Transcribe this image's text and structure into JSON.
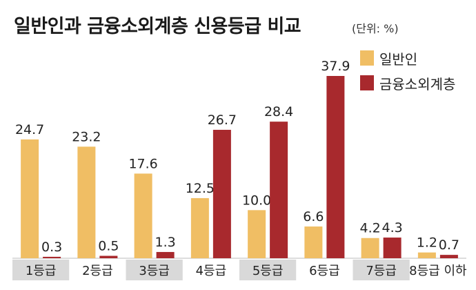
{
  "header": {
    "title": "일반인과 금융소외계층 신용등급 비교",
    "unit": "(단위: %)"
  },
  "colors": {
    "general": "#F0BE64",
    "excluded": "#A8292D",
    "band": "#D9D9D9"
  },
  "chart_data": {
    "type": "bar",
    "title": "일반인과 금융소외계층 신용등급 비교",
    "unit": "(단위: %)",
    "categories": [
      "1등급",
      "2등급",
      "3등급",
      "4등급",
      "5등급",
      "6등급",
      "7등급",
      "8등급 이하"
    ],
    "series": [
      {
        "name": "일반인",
        "values": [
          24.7,
          23.2,
          17.6,
          12.5,
          10.0,
          6.6,
          4.2,
          1.2
        ]
      },
      {
        "name": "금융소외계층",
        "values": [
          0.3,
          0.5,
          1.3,
          26.7,
          28.4,
          37.9,
          4.3,
          0.7
        ]
      }
    ],
    "value_labels": [
      [
        "24.7",
        "23.2",
        "17.6",
        "12.5",
        "10.0",
        "6.6",
        "4.2",
        "1.2"
      ],
      [
        "0.3",
        "0.5",
        "1.3",
        "26.7",
        "28.4",
        "37.9",
        "4.3",
        "0.7"
      ]
    ],
    "ylim": [
      0,
      40
    ],
    "grid": false,
    "legend": "top-right"
  }
}
